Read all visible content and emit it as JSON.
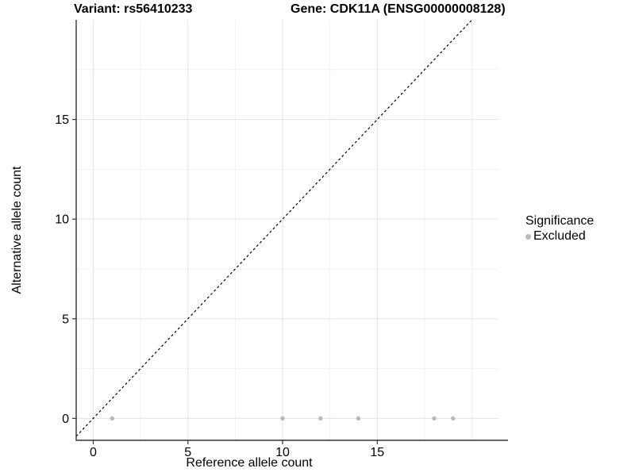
{
  "titles": {
    "variant": "Variant: rs56410233",
    "gene": "Gene: CDK11A (ENSG00000008128)"
  },
  "legend": {
    "title": "Significance",
    "items": [
      {
        "label": "Excluded",
        "color": "#b9b9b9"
      }
    ]
  },
  "chart_data": {
    "type": "scatter",
    "title_left": "Variant: rs56410233",
    "title_right": "Gene: CDK11A (ENSG00000008128)",
    "xlabel": "Reference allele count",
    "ylabel": "Alternative allele count",
    "xlim": [
      -0.9,
      21.4
    ],
    "ylim": [
      -1.1,
      20.0
    ],
    "xticks": [
      0,
      5,
      10,
      15
    ],
    "yticks": [
      0,
      5,
      10,
      15
    ],
    "x_minor_gridlines": [
      2.5,
      7.5,
      12.5,
      17.5,
      20
    ],
    "y_minor_gridlines": [
      2.5,
      7.5,
      12.5,
      17.5
    ],
    "grid": true,
    "legend_position": "right",
    "series": [
      {
        "name": "Excluded",
        "color": "#b9b9b9",
        "points": [
          [
            1,
            0
          ],
          [
            10,
            0
          ],
          [
            12,
            0
          ],
          [
            14,
            0
          ],
          [
            18,
            0
          ],
          [
            19,
            0
          ]
        ]
      }
    ],
    "reference_line": {
      "type": "identity",
      "slope": 1,
      "intercept": 0,
      "style": "dashed",
      "color": "#000000"
    },
    "colors": {
      "point": "#b9b9b9",
      "major_grid": "#e3e3e3",
      "minor_grid": "#f1f1f1",
      "axis_line": "#333333",
      "tick": "#333333",
      "tick_label": "#000000"
    }
  }
}
